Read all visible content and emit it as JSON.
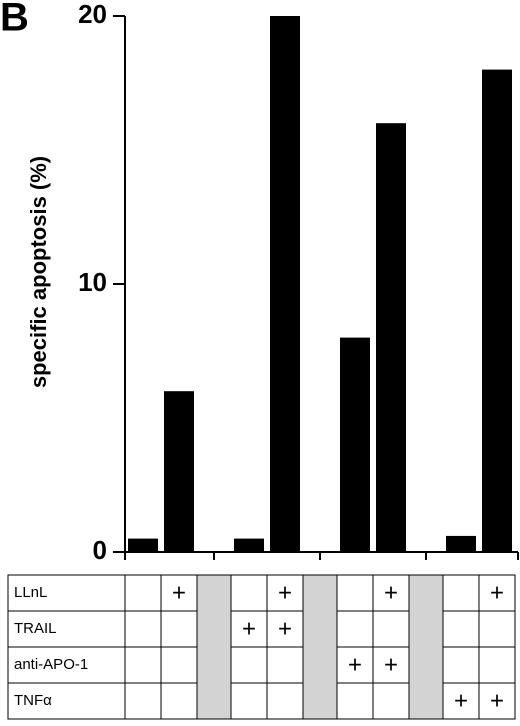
{
  "panel_label": "B",
  "chart_data": {
    "type": "bar",
    "y_label": "specific apoptosis (%)",
    "categories": [
      null,
      null,
      null,
      null,
      null,
      null,
      null,
      null
    ],
    "values": [
      0.5,
      6,
      0.5,
      20,
      8,
      16,
      0.6,
      18
    ],
    "color": "#000000",
    "ylim": [
      0,
      20
    ],
    "yticks": [
      0,
      10,
      20
    ],
    "grid": false
  },
  "table": {
    "rows": [
      {
        "label": "LLnL",
        "cells": [
          null,
          "+",
          null,
          "+",
          null,
          "+",
          null,
          "+"
        ]
      },
      {
        "label": "TRAIL",
        "cells": [
          null,
          null,
          "+",
          "+",
          null,
          null,
          null,
          null
        ]
      },
      {
        "label": "anti-APO-1",
        "cells": [
          null,
          null,
          null,
          null,
          "+",
          "+",
          null,
          null
        ]
      },
      {
        "label": "TNFα",
        "cells": [
          null,
          null,
          null,
          null,
          null,
          null,
          "+",
          "+"
        ]
      }
    ]
  }
}
